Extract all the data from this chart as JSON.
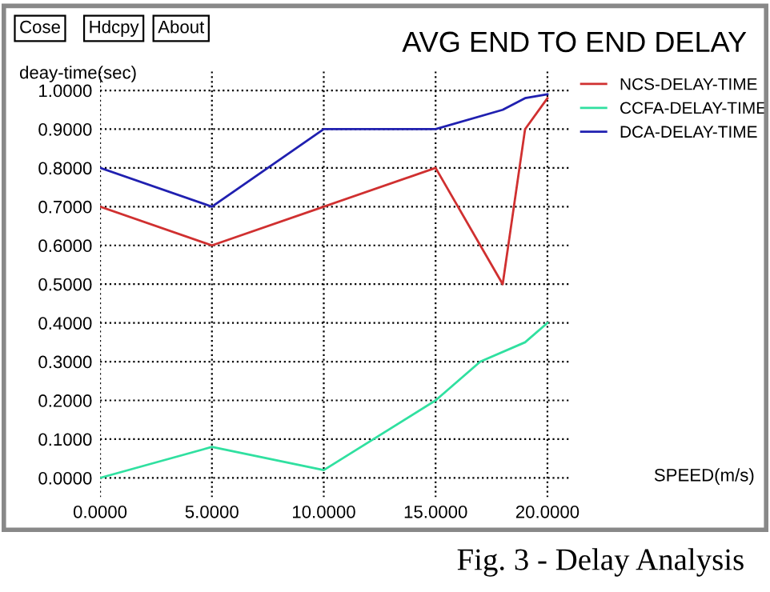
{
  "chart_data": {
    "type": "line",
    "title": "AVG END TO END DELAY",
    "ylabel": "deay-time(sec)",
    "xlabel": "SPEED(m/s)",
    "annotations": [
      "Cose",
      "Hdcpy",
      "About",
      "Fig. 3 - Delay Analysis"
    ],
    "series": [
      {
        "name": "NCS-DELAY-TIME",
        "color": "#d03030",
        "x": [
          0,
          5,
          10,
          15,
          18,
          19,
          20
        ],
        "values": [
          0.7,
          0.6,
          0.7,
          0.8,
          0.5,
          0.9,
          0.98
        ]
      },
      {
        "name": "CCFA-DELAY-TIME",
        "color": "#30e0a0",
        "x": [
          0,
          2.5,
          5,
          10,
          15,
          17,
          19,
          20
        ],
        "values": [
          0.0,
          0.04,
          0.08,
          0.02,
          0.2,
          0.3,
          0.35,
          0.4
        ]
      },
      {
        "name": "DCA-DELAY-TIME",
        "color": "#2020b0",
        "x": [
          0,
          5,
          10,
          15,
          18,
          19,
          20
        ],
        "values": [
          0.8,
          0.7,
          0.9,
          0.9,
          0.95,
          0.98,
          0.99
        ]
      }
    ],
    "xlim": [
      0,
      21
    ],
    "ylim": [
      -0.05,
      1.05
    ],
    "xticks": [
      {
        "value": 0,
        "label": "0.0000"
      },
      {
        "value": 5,
        "label": "5.0000"
      },
      {
        "value": 10,
        "label": "10.0000"
      },
      {
        "value": 15,
        "label": "15.0000"
      },
      {
        "value": 20,
        "label": "20.0000"
      }
    ],
    "yticks": [
      {
        "value": 0,
        "label": "0.0000"
      },
      {
        "value": 0.1,
        "label": "0.1000"
      },
      {
        "value": 0.2,
        "label": "0.2000"
      },
      {
        "value": 0.3,
        "label": "0.3000"
      },
      {
        "value": 0.4,
        "label": "0.4000"
      },
      {
        "value": 0.5,
        "label": "0.5000"
      },
      {
        "value": 0.6,
        "label": "0.6000"
      },
      {
        "value": 0.7,
        "label": "0.7000"
      },
      {
        "value": 0.8,
        "label": "0.8000"
      },
      {
        "value": 0.9,
        "label": "0.9000"
      },
      {
        "value": 1.0,
        "label": "1.0000"
      }
    ],
    "grid": true,
    "legend": "right",
    "marker": "none",
    "line_style": "solid"
  }
}
